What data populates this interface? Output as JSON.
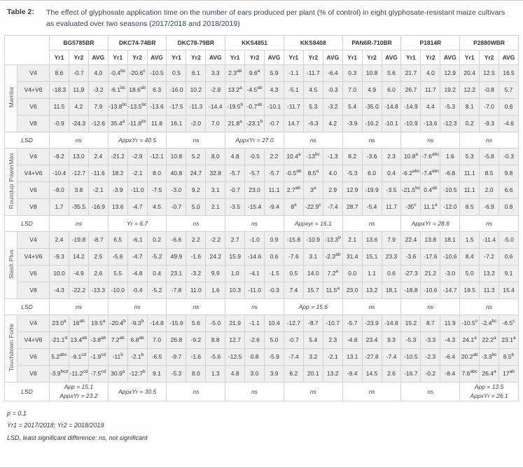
{
  "title": {
    "label": "Table 2:",
    "text": "The effect of glyphosate application time on the number of ears produced per plant (% of control) in eight glyphosate-resistant maize cultivars as evaluated over two seasons (2017/2018 and 2018/2019)"
  },
  "table": {
    "cultivars": [
      "BG5785BR",
      "DKC74-74BR",
      "DKC78-79BR",
      "KKS4851",
      "KKS8408",
      "PAN6R-710BR",
      "P1814R",
      "P2880WBR"
    ],
    "year_headers": [
      "Yr1",
      "Yr2",
      "AVG"
    ],
    "lsd_label": "LSD",
    "groups": [
      {
        "name": "Mamba",
        "rows": [
          {
            "treatment": "V4",
            "values": [
              "8.6",
              "-0.7",
              "4.0",
              "-0.4^bc",
              "-20.6^c",
              "-10.5",
              "0.5",
              "6.1",
              "3.3",
              "2.3^ab",
              "9.6^a",
              "5.9",
              "-1.1",
              "-11.7",
              "-6.4",
              "0.3",
              "10.8",
              "5.6",
              "21.7",
              "4.0",
              "12.9",
              "20.4",
              "12.5",
              "16.5"
            ]
          },
          {
            "treatment": "V4+V6",
            "values": [
              "-18.3",
              "11.9",
              "-3.2",
              "-6.1^bc",
              "18.6^ab",
              "6.3",
              "-16.0",
              "10.2",
              "-2.9",
              "13.2^a",
              "-4.5^ab",
              "4.3",
              "-5.1",
              "4.5",
              "-0.3",
              "7.0",
              "4.9",
              "6.0",
              "26.7",
              "11.7",
              "19.2",
              "12.2",
              "-0.8",
              "5.7"
            ]
          },
          {
            "treatment": "V6",
            "values": [
              "11.5",
              "4.2",
              "7.9",
              "-13.8^bc",
              "-13.5^bc",
              "-13.6",
              "-17.5",
              "-11.3",
              "-14.4",
              "-19.5^b",
              "-0.7^ab",
              "-10.1",
              "-11.7",
              "5.3",
              "-3.2",
              "5.4",
              "-35.0",
              "-14.8",
              "-14.9",
              "4.4",
              "-5.3",
              "8.1",
              "-7.0",
              "0.6"
            ]
          },
          {
            "treatment": "V8",
            "values": [
              "-0.9",
              "-24.3",
              "-12.6",
              "35.4^a",
              "-11.8^bc",
              "11.8",
              "16.1",
              "-2.0",
              "7.0",
              "21.8^a",
              "-23.1^b",
              "-0.7",
              "14.7",
              "-6.3",
              "4.2",
              "-3.9",
              "-16.2",
              "-10.1",
              "-10.9",
              "-13.6",
              "-12.3",
              "0.2",
              "-9.3",
              "-4.6"
            ]
          }
        ],
        "lsd": [
          "ns",
          "AppxYr = 40.5",
          "ns",
          "AppxYr = 27.0",
          "ns",
          "ns",
          "ns",
          "ns"
        ]
      },
      {
        "name": "Roundup PowerMax",
        "rows": [
          {
            "treatment": "V4",
            "values": [
              "-8.2",
              "13.0",
              "2.4",
              "-21.2",
              "-2.9",
              "-12.1",
              "10.8",
              "5.2",
              "8.0",
              "4.8",
              "-0.5",
              "2.2",
              "10.4^a",
              "-13^bc",
              "-1.3",
              "8.2",
              "-3.6",
              "2.3",
              "10.8^a",
              "-7.6^abc",
              "1.6",
              "5.3",
              "-5.8",
              "-0.3"
            ]
          },
          {
            "treatment": "V4+V6",
            "values": [
              "-10.4",
              "-12.7",
              "-11.6",
              "18.2",
              "-2.1",
              "8.0",
              "40.8",
              "24.7",
              "32.8",
              "-5.7",
              "-5.7",
              "-5.7",
              "-0.5^ab",
              "8.5^a",
              "4.0",
              "-5.3",
              "6.0",
              "0.4",
              "-6.2^abc",
              "-7.4^abc",
              "-6.8",
              "11.1",
              "8.5",
              "9.8"
            ]
          },
          {
            "treatment": "V6",
            "values": [
              "-8.0",
              "3.8",
              "-2.1",
              "-3.9",
              "-11.0",
              "-7.5",
              "-3.0",
              "9.2",
              "3.1",
              "-0.7",
              "23.0",
              "11.1",
              "2.7^ab",
              "3^a",
              "2.9",
              "12.9",
              "-19.9",
              "-3.5",
              "-21.5^bc",
              "0.4^ab",
              "-10.5",
              "11.1",
              "2.0",
              "6.6"
            ]
          },
          {
            "treatment": "V8",
            "values": [
              "1.7",
              "-35.5",
              "-16.9",
              "13.6",
              "-4.7",
              "4.5",
              "-0.7",
              "5.0",
              "2.1",
              "-3.5",
              "-15.4",
              "-9.4",
              "8^a",
              "-22.9^c",
              "-7.4",
              "28.7",
              "-5.4",
              "11.7",
              "-35^c",
              "11.1^a",
              "-12.0",
              "8.5",
              "-6.9",
              "0.8"
            ]
          }
        ],
        "lsd": [
          "ns",
          "Yr = 6.7",
          "ns",
          "ns",
          "Appxyr = 16.1",
          "ns",
          "AppxYr = 28.6",
          "ns"
        ]
      },
      {
        "name": "Slash Plus",
        "rows": [
          {
            "treatment": "V4",
            "values": [
              "2.4",
              "-19.8",
              "-8.7",
              "6.5",
              "-6.1",
              "0.2",
              "-6.6",
              "2.2",
              "-2.2",
              "2.7",
              "-1.0",
              "0.9",
              "-15.8",
              "-10.9",
              "-13.3^b",
              "2.1",
              "13.6",
              "7.9",
              "22.4",
              "13.8",
              "18.1",
              "1.5",
              "-11.4",
              "-5.0"
            ]
          },
          {
            "treatment": "V4+V6",
            "values": [
              "-9.3",
              "14.2",
              "2.5",
              "-5.6",
              "-4.7",
              "-5.2",
              "49.9",
              "-1.6",
              "24.2",
              "15.9",
              "-14.6",
              "0.6",
              "-7.6",
              "3.1",
              "-2.3^ab",
              "31.4",
              "15.1",
              "23.3",
              "-3.6",
              "-17.6",
              "-10.6",
              "8.4",
              "-7.2",
              "0.6"
            ]
          },
          {
            "treatment": "V6",
            "values": [
              "10.0",
              "-4.9",
              "2.6",
              "5.5",
              "-4.8",
              "0.4",
              "23.1",
              "-3.2",
              "9.9",
              "1.0",
              "-4.1",
              "-1.5",
              "0.5",
              "14.0",
              "7.2^a",
              "0.0",
              "1.1",
              "0.6",
              "-27.3",
              "21.2",
              "-3.0",
              "5.0",
              "13.2",
              "9.1"
            ]
          },
          {
            "treatment": "V8",
            "values": [
              "-4.3",
              "-22.2",
              "-13.3",
              "-10.0",
              "-0.4",
              "-5.2",
              "-7.8",
              "11.0",
              "1.6",
              "10.3",
              "-11.0",
              "-0.3",
              "7.4",
              "15.7",
              "11.5^a",
              "23.0",
              "13.2",
              "18.1",
              "-18.8",
              "-10.6",
              "-14.7",
              "19.5",
              "11.3",
              "15.4"
            ]
          }
        ],
        "lsd": [
          "ns",
          "ns",
          "ns",
          "ns",
          "App = 15.6",
          "ns",
          "ns",
          "ns"
        ]
      },
      {
        "name": "Touchdown Forte",
        "rows": [
          {
            "treatment": "V4",
            "values": [
              "23.0^a",
              "16^ab",
              "19.5^a",
              "-20.4^b",
              "-9.3^b",
              "-14.8",
              "-15.6",
              "5.6",
              "-5.0",
              "21.9",
              "-1.1",
              "10.4",
              "-12.7",
              "-8.7",
              "-10.7",
              "-5.7",
              "-23.9",
              "-14.8",
              "15.2",
              "8.7",
              "11.9",
              "-10.5^c",
              "-2.4^bc",
              "-6.5^c"
            ]
          },
          {
            "treatment": "V4+V6",
            "values": [
              "-21.1^d",
              "13.4^ab",
              "-3.8^ab",
              "7.2^ab",
              "6.8^ab",
              "7.0",
              "26.8",
              "-9.2",
              "8.8",
              "12.7",
              "-2.6",
              "5.0",
              "-0.7",
              "5.4",
              "2.3",
              "-4.8",
              "23.4",
              "9.3",
              "-5.3",
              "-3.3",
              "-4.3",
              "24.1^a",
              "22.2^a",
              "23.1^a"
            ]
          },
          {
            "treatment": "V6",
            "values": [
              "5.2^abc",
              "-9.1^cd",
              "-1.9^cd",
              "-11^b",
              "-2.1^b",
              "-6.5",
              "-9.7",
              "-1.6",
              "-5.6",
              "-12.5",
              "0.8",
              "-5.9",
              "-7.4",
              "3.2",
              "-2.1",
              "13.1",
              "-27.8",
              "-7.4",
              "-10.5",
              "-2.3",
              "-6.4",
              "20.2^ab",
              "-3.3^bc",
              "8.5^b"
            ]
          },
          {
            "treatment": "V8",
            "values": [
              "-3.9^bcd",
              "-11.2^cd",
              "-7.5^cd",
              "30.9^a",
              "-12.7^b",
              "9.1",
              "-5.3",
              "8.0",
              "1.3",
              "4.8",
              "3.0",
              "3.9",
              "6.2",
              "20.1",
              "13.2",
              "-9.4",
              "14.5",
              "2.6",
              "-16.7",
              "-0.2",
              "-8.4",
              "7.6^abc",
              "26.4^a",
              "17^ab"
            ]
          }
        ],
        "lsd": [
          "App = 15.1\nAppxYr = 23.2",
          "AppxYr = 30.5",
          "ns",
          "ns",
          "ns",
          "ns",
          "ns",
          "App = 13.5\nAppxYr = 26.1"
        ]
      }
    ]
  },
  "footnotes": [
    "p = 0.1",
    "Yr1 = 2017/2018; Yr2 = 2018/2019",
    "LSD, least significant difference; ns, not significant"
  ],
  "colors": {
    "caption_text": "#32455a",
    "data_row_bg": "#efefef",
    "border_light": "#d2d2d2",
    "border_heavy": "#9c9c9c"
  }
}
